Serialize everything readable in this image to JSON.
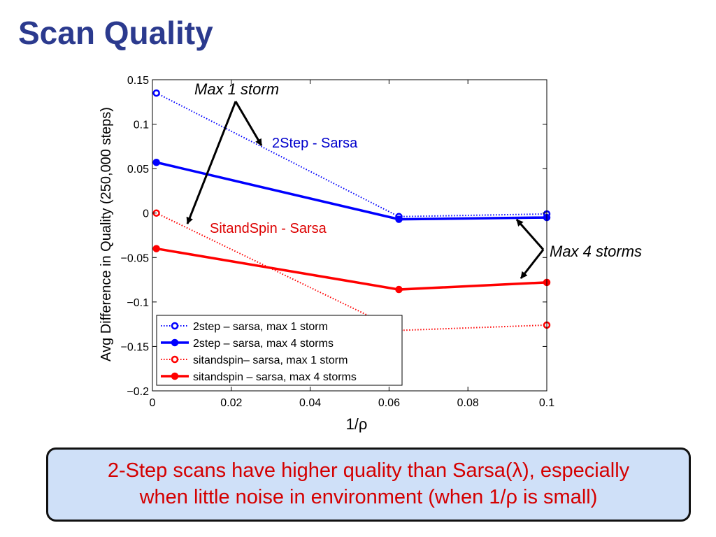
{
  "slide": {
    "title": "Scan Quality",
    "summary_line1": "2-Step scans have higher quality than Sarsa(λ), especially",
    "summary_line2": "when little noise in environment (when 1/ρ is small)"
  },
  "colors": {
    "title": "#2b3a8e",
    "blue_series": "#0000ff",
    "red_series": "#ff0000",
    "callout_bg": "#cfe0f8",
    "callout_text": "#d40000"
  },
  "chart_data": {
    "type": "line",
    "xlabel": "1/ρ",
    "ylabel": "Avg Difference in Quality  (250,000 steps)",
    "xlim": [
      0,
      0.1
    ],
    "ylim": [
      -0.2,
      0.15
    ],
    "xticks": [
      0,
      0.02,
      0.04,
      0.06,
      0.08,
      0.1
    ],
    "xtick_labels": [
      "0",
      "0.02",
      "0.04",
      "0.06",
      "0.08",
      "0.1"
    ],
    "yticks": [
      0.15,
      0.1,
      0.05,
      0,
      -0.05,
      -0.1,
      -0.15,
      -0.2
    ],
    "ytick_labels": [
      "0.15",
      "0.1",
      "0.05",
      "0",
      "−0.05",
      "−0.1",
      "−0.15",
      "−0.2"
    ],
    "grid": false,
    "legend_position": "bottom-left",
    "series": [
      {
        "name": "2step – sarsa, max 1 storm",
        "color": "#0000ff",
        "style": "dotted",
        "x": [
          0.001,
          0.0625,
          0.1
        ],
        "y": [
          0.135,
          -0.004,
          -0.001
        ]
      },
      {
        "name": "2step – sarsa, max 4 storms",
        "color": "#0000ff",
        "style": "solid",
        "x": [
          0.001,
          0.0625,
          0.1
        ],
        "y": [
          0.057,
          -0.007,
          -0.005
        ]
      },
      {
        "name": "sitandspin– sarsa, max 1 storm",
        "color": "#ff0000",
        "style": "dotted",
        "x": [
          0.001,
          0.0625,
          0.1
        ],
        "y": [
          0.0,
          -0.132,
          -0.126
        ]
      },
      {
        "name": "sitandspin – sarsa, max 4 storms",
        "color": "#ff0000",
        "style": "solid",
        "x": [
          0.001,
          0.0625,
          0.1
        ],
        "y": [
          -0.04,
          -0.086,
          -0.078
        ]
      }
    ],
    "annotations": [
      {
        "text": "Max 1 storm",
        "color": "#000000",
        "italic": true
      },
      {
        "text": "2Step - Sarsa",
        "color": "#0000cc",
        "italic": false
      },
      {
        "text": "SitandSpin - Sarsa",
        "color": "#dd0000",
        "italic": false
      },
      {
        "text": "Max 4 storms",
        "color": "#000000",
        "italic": true
      }
    ]
  }
}
